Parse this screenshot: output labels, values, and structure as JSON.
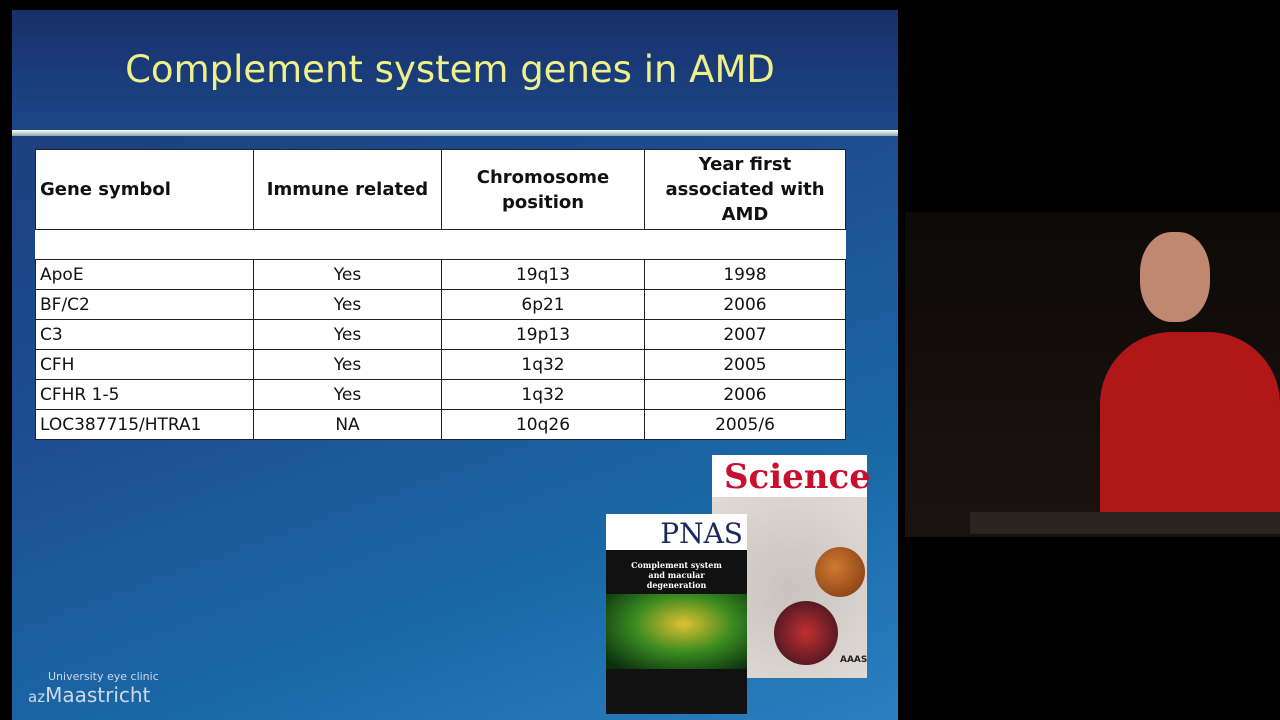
{
  "slide": {
    "title": "Complement system genes in AMD",
    "table": {
      "header": [
        "Gene symbol",
        "Immune related",
        "Chromosome position",
        "Year first associated with AMD"
      ],
      "rows": [
        [
          "ApoE",
          "Yes",
          "19q13",
          "1998"
        ],
        [
          "BF/C2",
          "Yes",
          "6p21",
          "2006"
        ],
        [
          "C3",
          "Yes",
          "19p13",
          "2007"
        ],
        [
          "CFH",
          "Yes",
          "1q32",
          "2005"
        ],
        [
          "CFHR 1-5",
          "Yes",
          "1q32",
          "2006"
        ],
        [
          "LOC387715/HTRA1",
          "NA",
          "10q26",
          "2005/6"
        ]
      ]
    },
    "covers": {
      "science": "Science",
      "aaas": "AAAS",
      "pnas": "PNAS",
      "pnas_headline": "Complement system and macular degeneration"
    },
    "logo": {
      "line1": "University eye clinic",
      "prefix": "az",
      "name": "Maastricht"
    }
  }
}
